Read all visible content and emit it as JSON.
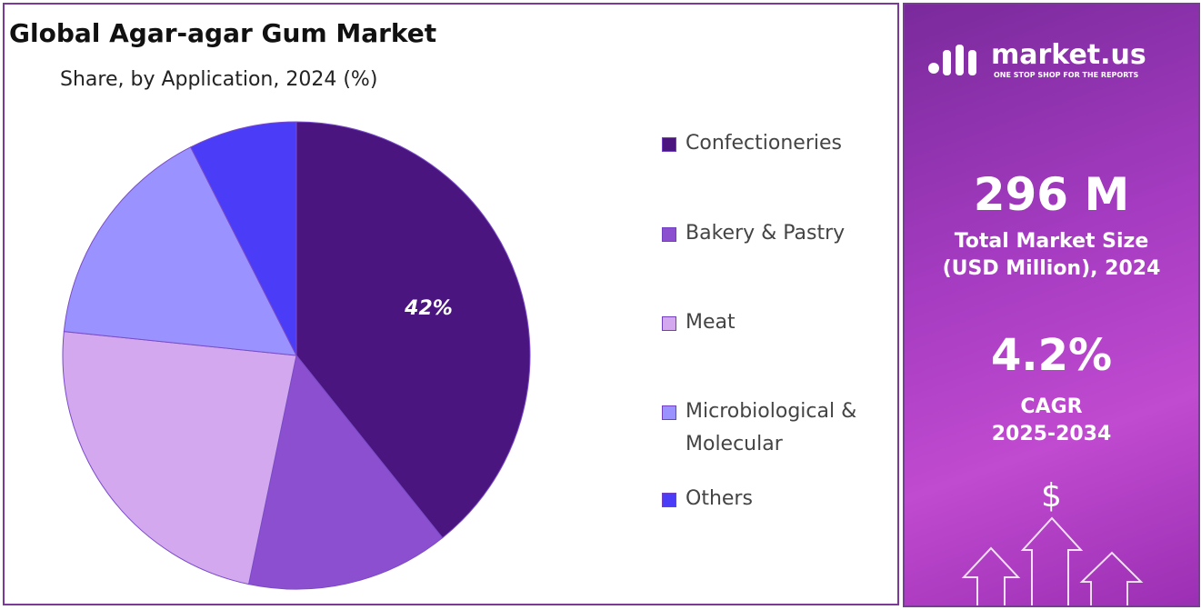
{
  "chart_data": {
    "type": "pie",
    "title": "Global Agar-agar Gum Market",
    "subtitle": "Share, by Application, 2024 (%)",
    "categories": [
      "Confectioneries",
      "Bakery & Pastry",
      "Meat",
      "Microbiological & Molecular",
      "Others"
    ],
    "values": [
      42,
      15,
      25,
      17,
      8
    ],
    "value_labels": [
      "42%",
      null,
      null,
      null,
      null
    ],
    "colors": [
      "#4b1580",
      "#8b4fd0",
      "#d4a8ee",
      "#9a93ff",
      "#4a3cf7"
    ]
  },
  "panel": {
    "logo": "market.us",
    "tagline": "ONE STOP SHOP FOR THE REPORTS",
    "market_size": "296 M",
    "market_size_label_1": "Total Market Size",
    "market_size_label_2": "(USD Million), 2024",
    "cagr": "4.2%",
    "cagr_label": "CAGR",
    "cagr_period": "2025-2034",
    "icon": "$"
  }
}
